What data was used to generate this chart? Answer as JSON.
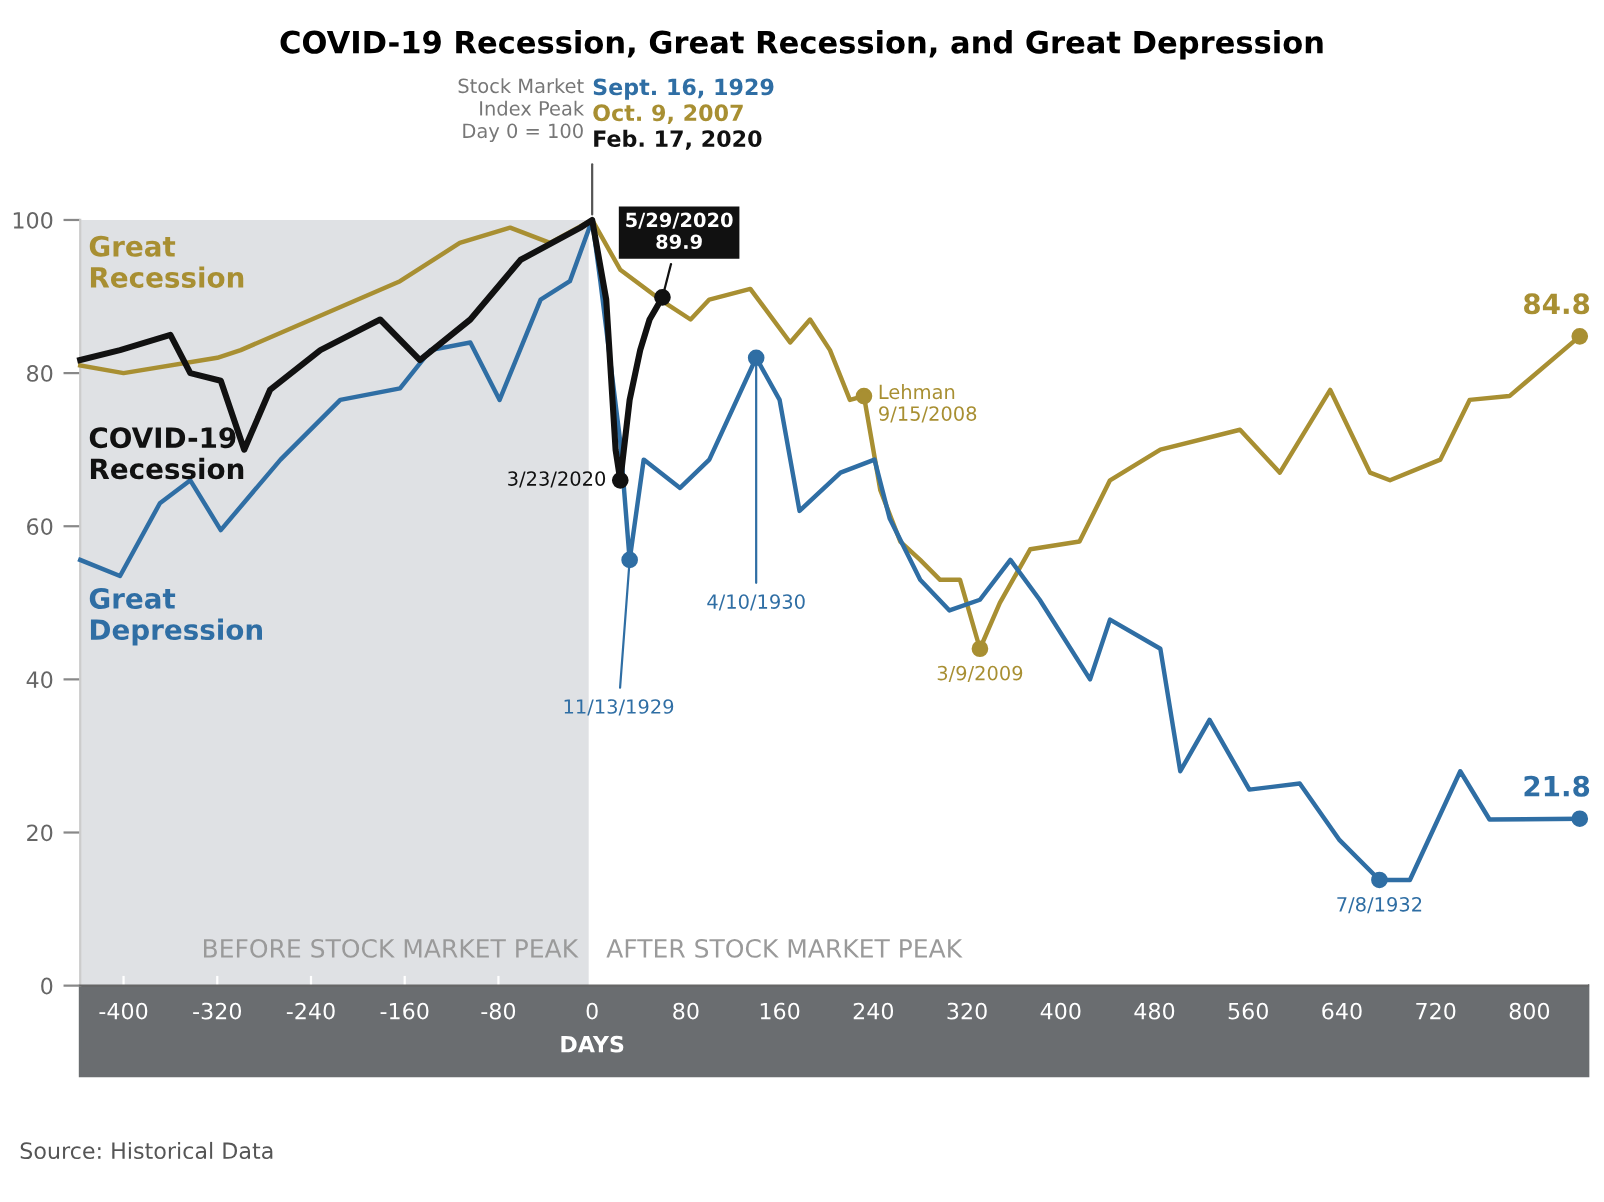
{
  "chart_data": {
    "type": "line",
    "title": "COVID-19 Recession, Great Recession, and Great Depression",
    "xlabel": "DAYS",
    "xlim": [
      -437,
      850
    ],
    "ylim": [
      0,
      100
    ],
    "xticks": [
      -400,
      -320,
      -240,
      -160,
      -80,
      0,
      80,
      160,
      240,
      320,
      400,
      480,
      560,
      640,
      720,
      800
    ],
    "yticks": [
      0,
      20,
      40,
      60,
      80,
      100
    ],
    "grid": false,
    "legend": false,
    "marker": "none",
    "line_style": "solid",
    "series": [
      {
        "name": "Great Recession",
        "color": "#a88f32",
        "x": [
          -437,
          -400,
          -320,
          -300,
          -164,
          -113,
          -70,
          -36,
          0,
          24,
          58,
          84,
          100,
          135,
          169,
          186,
          203,
          220,
          232,
          246,
          263,
          280,
          297,
          314,
          331,
          348,
          374,
          416,
          442,
          485,
          553,
          587,
          630,
          664,
          681,
          724,
          749,
          783,
          843
        ],
        "values": [
          81,
          80,
          82,
          83,
          92,
          97,
          99,
          97,
          100,
          93.5,
          89.6,
          87,
          89.6,
          91,
          84,
          87,
          83,
          76.5,
          77,
          64.7,
          58,
          55.6,
          53,
          53,
          44,
          50,
          57,
          58,
          66,
          70,
          72.6,
          67,
          77.8,
          67,
          66,
          68.7,
          76.5,
          77,
          84.8
        ]
      },
      {
        "name": "COVID-19 Recession",
        "color": "#111111",
        "x": [
          -437,
          -403,
          -360,
          -343,
          -317,
          -297,
          -275,
          -232,
          -181,
          -147,
          -104,
          -61,
          -10,
          0,
          12,
          20,
          24,
          32,
          41,
          49,
          60
        ],
        "values": [
          81.7,
          83,
          85,
          80,
          79,
          70,
          77.8,
          83,
          87,
          81.7,
          87,
          94.8,
          99,
          100,
          89.6,
          70,
          66,
          76.5,
          83,
          87,
          89.9
        ]
      },
      {
        "name": "Great Depression",
        "color": "#2f6ea4",
        "x": [
          -437,
          -403,
          -369,
          -343,
          -317,
          -266,
          -215,
          -164,
          -138,
          -104,
          -79,
          -44,
          -19,
          0,
          7,
          24,
          32,
          44,
          75,
          100,
          140,
          160,
          177,
          212,
          241,
          254,
          280,
          305,
          331,
          357,
          382,
          425,
          442,
          485,
          502,
          527,
          561,
          604,
          638,
          672,
          698,
          741,
          766,
          843
        ],
        "values": [
          55.6,
          53.5,
          63,
          66,
          59.5,
          68.7,
          76.5,
          78,
          83,
          84,
          76.5,
          89.6,
          92,
          100,
          92,
          71,
          55.6,
          68.7,
          65,
          68.7,
          82,
          76.5,
          62,
          67,
          68.7,
          61,
          53,
          49,
          50.4,
          55.6,
          50.4,
          40,
          47.8,
          44,
          28,
          34.7,
          25.6,
          26.4,
          19,
          13.8,
          13.8,
          28,
          21.7,
          21.8
        ]
      }
    ],
    "bands": [
      {
        "axis": "x",
        "from": -437,
        "to": 0,
        "label": "BEFORE STOCK MARKET PEAK",
        "color": "#dfe1e4"
      }
    ],
    "ref_lines": [
      {
        "axis": "x",
        "value": 0,
        "color": "#ffffff"
      }
    ],
    "annotations": [
      "Stock Market\nIndex Peak\nDay 0 = 100",
      "Sept. 16, 1929",
      "Oct. 9, 2007",
      "Feb. 17, 2020",
      {
        "text": "5/29/2020\n89.9",
        "x": 60,
        "y": 89.9
      },
      {
        "text": "3/23/2020",
        "x": 24,
        "y": 66
      },
      {
        "text": "11/13/1929",
        "x": 32,
        "y": 55.6
      },
      {
        "text": "4/10/1930",
        "x": 140,
        "y": 82
      },
      {
        "text": "Lehman\n9/15/2008",
        "x": 232,
        "y": 77
      },
      {
        "text": "3/9/2009",
        "x": 331,
        "y": 44
      },
      {
        "text": "7/8/1932",
        "x": 672,
        "y": 13.8
      },
      {
        "text": "84.8",
        "x": 843,
        "y": 84.8
      },
      {
        "text": "21.8",
        "x": 843,
        "y": 21.8
      },
      "AFTER STOCK MARKET PEAK",
      "Source: Historical Data"
    ]
  }
}
